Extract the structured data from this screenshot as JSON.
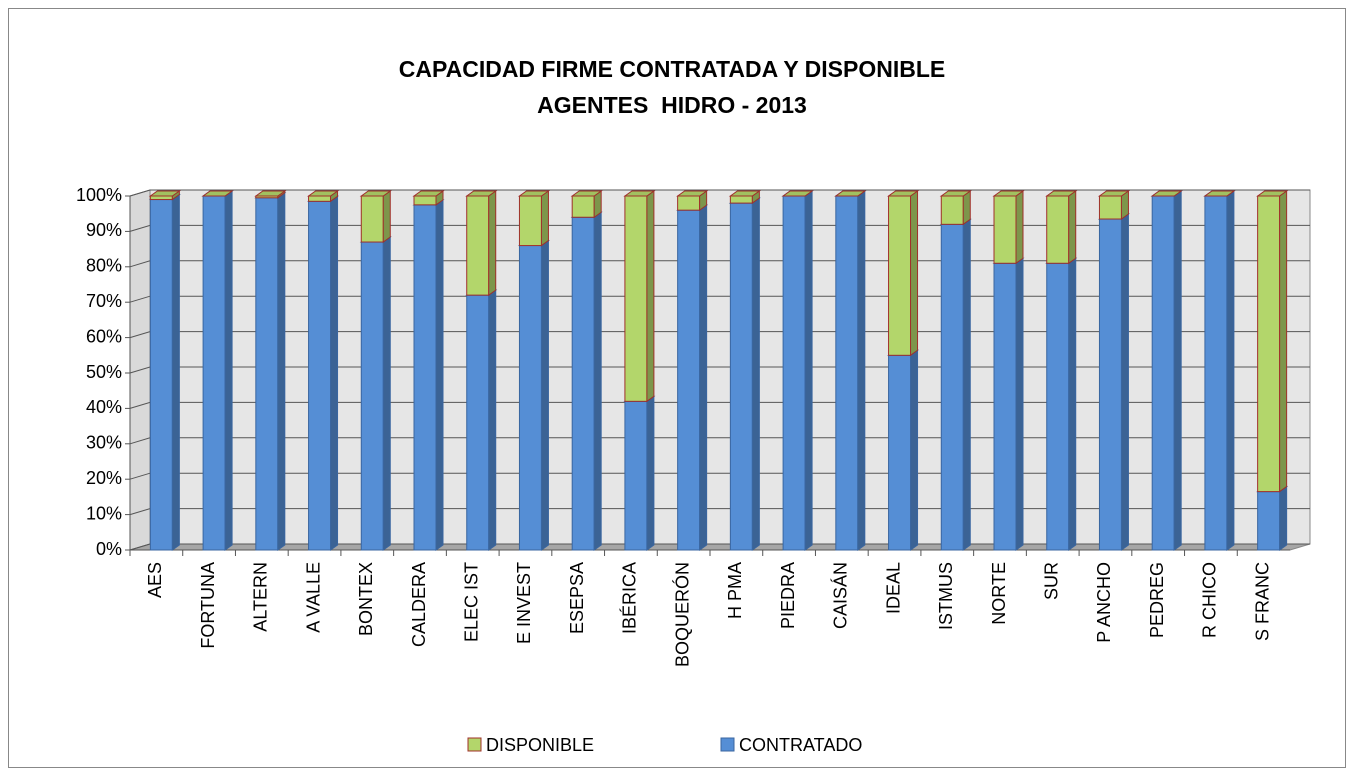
{
  "chart_data": {
    "type": "stacked_bar_3d",
    "title": "CAPACIDAD FIRME CONTRATADA Y DISPONIBLE",
    "subtitle": "AGENTES  HIDRO - 2013",
    "categories": [
      "AES",
      "FORTUNA",
      "ALTERN",
      "A VALLE",
      "BONTEX",
      "CALDERA",
      "ELEC IST",
      "E INVEST",
      "ESEPSA",
      "IBÉRICA",
      "BOQUERÓN",
      "H PMA",
      "PIEDRA",
      "CAISÁN",
      "IDEAL",
      "ISTMUS",
      "NORTE",
      "SUR",
      "P ANCHO",
      "PEDREG",
      "R CHICO",
      "S FRANC"
    ],
    "series": [
      {
        "name": "CONTRATADO",
        "color": "#558ed5",
        "values": [
          99,
          100,
          99.5,
          98.5,
          87,
          97.5,
          72,
          86,
          94,
          42,
          96,
          98,
          100,
          100,
          55,
          92,
          81,
          81,
          93.5,
          100,
          100,
          16.5
        ]
      },
      {
        "name": "DISPONIBLE",
        "color": "#b3d66b",
        "values": [
          1,
          0,
          0.5,
          1.5,
          13,
          2.5,
          28,
          14,
          6,
          58,
          4,
          2,
          0,
          0,
          45,
          8,
          19,
          19,
          6.5,
          0,
          0,
          83.5
        ]
      }
    ],
    "ylim": [
      0,
      100
    ],
    "yticks": [
      {
        "value": 0,
        "label": "0%"
      },
      {
        "value": 10,
        "label": "10%"
      },
      {
        "value": 20,
        "label": "20%"
      },
      {
        "value": 30,
        "label": "30%"
      },
      {
        "value": 40,
        "label": "40%"
      },
      {
        "value": 50,
        "label": "50%"
      },
      {
        "value": 60,
        "label": "60%"
      },
      {
        "value": 70,
        "label": "70%"
      },
      {
        "value": 80,
        "label": "80%"
      },
      {
        "value": 90,
        "label": "90%"
      },
      {
        "value": 100,
        "label": "100%"
      }
    ],
    "grid": true,
    "legend": "bottom"
  }
}
